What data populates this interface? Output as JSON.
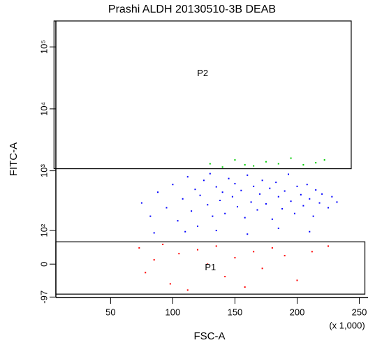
{
  "chart_data": {
    "type": "scatter",
    "title": "Prashi ALDH 20130510-3B DEAB",
    "x_label": "FSC-A",
    "y_label": "FITC-A",
    "x_multiplier": "(x 1,000)",
    "xlim": [
      6,
      257
    ],
    "xticks": [
      50,
      100,
      150,
      200,
      250
    ],
    "ylim": [
      -99,
      262144
    ],
    "yscale": "biexponential",
    "yticks": [
      {
        "value": 100000,
        "label": "10⁵"
      },
      {
        "value": 10000,
        "label": "10⁴"
      },
      {
        "value": 1000,
        "label": "10³"
      },
      {
        "value": 100,
        "label": "10²"
      },
      0,
      -97
    ],
    "gates": [
      {
        "name": "P2",
        "x": [
          4.5,
          243.5
        ],
        "y": [
          1081,
          262144
        ]
      },
      {
        "name": "P1",
        "x": [
          6,
          254.5
        ],
        "y": [
          -85,
          58
        ]
      }
    ],
    "series": [
      {
        "color": "#0000ff",
        "x": [
          75,
          82,
          88,
          95,
          100,
          104,
          108,
          112,
          115,
          118,
          120,
          122,
          125,
          128,
          130,
          132,
          135,
          138,
          140,
          142,
          145,
          148,
          150,
          152,
          155,
          158,
          160,
          163,
          165,
          168,
          170,
          172,
          175,
          178,
          180,
          183,
          185,
          188,
          190,
          193,
          195,
          198,
          200,
          203,
          205,
          208,
          210,
          213,
          215,
          218,
          220,
          225,
          228,
          232,
          85,
          110,
          135,
          160,
          185,
          210
        ],
        "values": [
          300,
          180,
          450,
          250,
          600,
          150,
          350,
          800,
          220,
          500,
          120,
          400,
          700,
          280,
          900,
          180,
          550,
          330,
          450,
          200,
          750,
          380,
          620,
          260,
          480,
          170,
          850,
          310,
          560,
          230,
          420,
          700,
          290,
          520,
          160,
          650,
          380,
          240,
          470,
          880,
          320,
          200,
          560,
          410,
          270,
          600,
          350,
          180,
          490,
          300,
          420,
          250,
          380,
          310,
          90,
          95,
          100,
          85,
          110,
          95
        ]
      },
      {
        "color": "#ff0000",
        "x": [
          73,
          78,
          85,
          92,
          98,
          105,
          112,
          120,
          128,
          135,
          142,
          150,
          158,
          165,
          172,
          180,
          190,
          200,
          212,
          225
        ],
        "values": [
          40,
          -20,
          10,
          50,
          -50,
          25,
          -70,
          35,
          0,
          45,
          -30,
          15,
          -60,
          30,
          -10,
          40,
          20,
          -40,
          30,
          45
        ]
      },
      {
        "color": "#00cc00",
        "x": [
          130,
          140,
          150,
          158,
          165,
          175,
          185,
          195,
          205,
          215,
          222
        ],
        "values": [
          1300,
          1150,
          1500,
          1250,
          1200,
          1400,
          1300,
          1600,
          1250,
          1350,
          1500
        ]
      }
    ]
  }
}
